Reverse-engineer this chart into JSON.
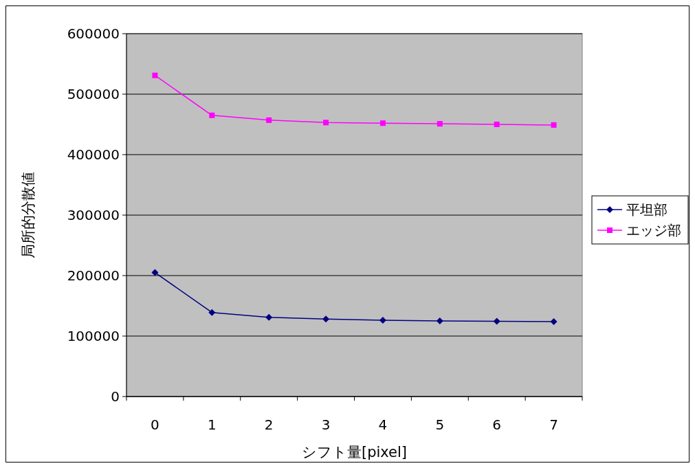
{
  "chart_data": {
    "type": "line",
    "xlabel": "シフト量[pixel]",
    "ylabel": "局所的分散値",
    "categories": [
      "0",
      "1",
      "2",
      "3",
      "4",
      "5",
      "6",
      "7"
    ],
    "series": [
      {
        "name": "平坦部",
        "color": "#000080",
        "marker": "diamond",
        "values": [
          205000,
          139000,
          131000,
          128000,
          126000,
          125000,
          124500,
          124000
        ]
      },
      {
        "name": "エッジ部",
        "color": "#ff00ff",
        "marker": "square",
        "values": [
          531000,
          465000,
          457000,
          453000,
          452000,
          451000,
          450000,
          449000
        ]
      }
    ],
    "ylim": [
      0,
      600000
    ],
    "yticks": [
      0,
      100000,
      200000,
      300000,
      400000,
      500000,
      600000
    ],
    "grid": "y",
    "legend": "right",
    "line_style": "solid"
  }
}
